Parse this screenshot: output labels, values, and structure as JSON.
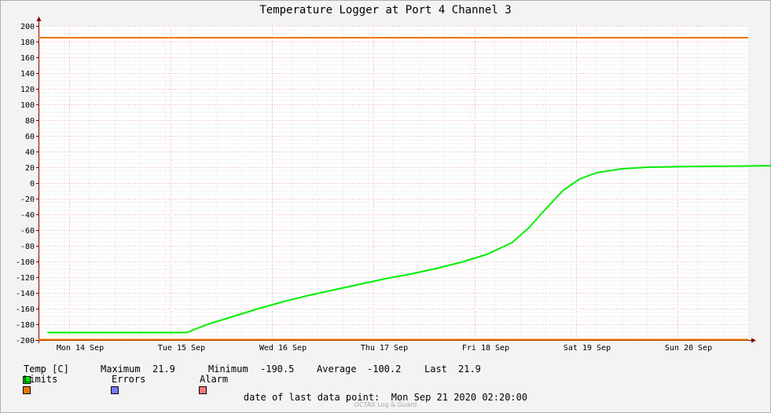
{
  "chart_data": {
    "type": "line",
    "title": "Temperature Logger at Port 4 Channel 3",
    "x_ticks": [
      "Mon 14 Sep",
      "Tue 15 Sep",
      "Wed 16 Sep",
      "Thu 17 Sep",
      "Fri 18 Sep",
      "Sat 19 Sep",
      "Sun 20 Sep"
    ],
    "xlim": [
      "2020-09-14 00:00",
      "2020-09-21 02:20"
    ],
    "ylim": [
      -200,
      200
    ],
    "y_ticks": [
      200,
      180,
      160,
      140,
      120,
      100,
      80,
      60,
      40,
      20,
      0,
      -20,
      -40,
      -60,
      -80,
      -100,
      -120,
      -140,
      -160,
      -180,
      -200
    ],
    "grid": true,
    "series": [
      {
        "name": "Temp [C]",
        "color": "#00ee00",
        "points": [
          [
            "2020-09-13 22:00",
            -190.5
          ],
          [
            "2020-09-15 07:00",
            -190.5
          ],
          [
            "2020-09-15 12:00",
            -180
          ],
          [
            "2020-09-15 18:00",
            -170
          ],
          [
            "2020-09-16 00:00",
            -160
          ],
          [
            "2020-09-16 06:00",
            -151
          ],
          [
            "2020-09-16 12:00",
            -143
          ],
          [
            "2020-09-16 18:00",
            -136
          ],
          [
            "2020-09-17 00:00",
            -129
          ],
          [
            "2020-09-17 06:00",
            -122
          ],
          [
            "2020-09-17 12:00",
            -116
          ],
          [
            "2020-09-17 18:00",
            -109
          ],
          [
            "2020-09-18 00:00",
            -101
          ],
          [
            "2020-09-18 06:00",
            -91
          ],
          [
            "2020-09-18 12:00",
            -76
          ],
          [
            "2020-09-18 16:00",
            -57
          ],
          [
            "2020-09-18 20:00",
            -33
          ],
          [
            "2020-09-19 00:00",
            -10
          ],
          [
            "2020-09-19 04:00",
            5
          ],
          [
            "2020-09-19 08:00",
            13
          ],
          [
            "2020-09-19 14:00",
            18
          ],
          [
            "2020-09-19 20:00",
            20
          ],
          [
            "2020-09-20 06:00",
            21
          ],
          [
            "2020-09-20 18:00",
            21.5
          ],
          [
            "2020-09-21 02:20",
            21.9
          ]
        ]
      },
      {
        "name": "Limits",
        "color": "#ee7700",
        "levels": [
          185,
          -200
        ]
      },
      {
        "name": "Errors",
        "color": "#7777ff"
      },
      {
        "name": "Alarm",
        "color": "#ff7777"
      }
    ]
  },
  "legend": {
    "temp_label": "Temp [C]",
    "max_label": "Maximum",
    "max_value": "21.9",
    "min_label": "Minimum",
    "min_value": "-190.5",
    "avg_label": "Average",
    "avg_value": "-100.2",
    "last_label": "Last",
    "last_value": "21.9",
    "limits_label": "Limits",
    "errors_label": "Errors",
    "alarm_label": "Alarm"
  },
  "footer": {
    "label": "date of last data point:",
    "value": "Mon Sep 21 2020 02:20:00",
    "watermark": "OCTAX Log & Guard"
  }
}
